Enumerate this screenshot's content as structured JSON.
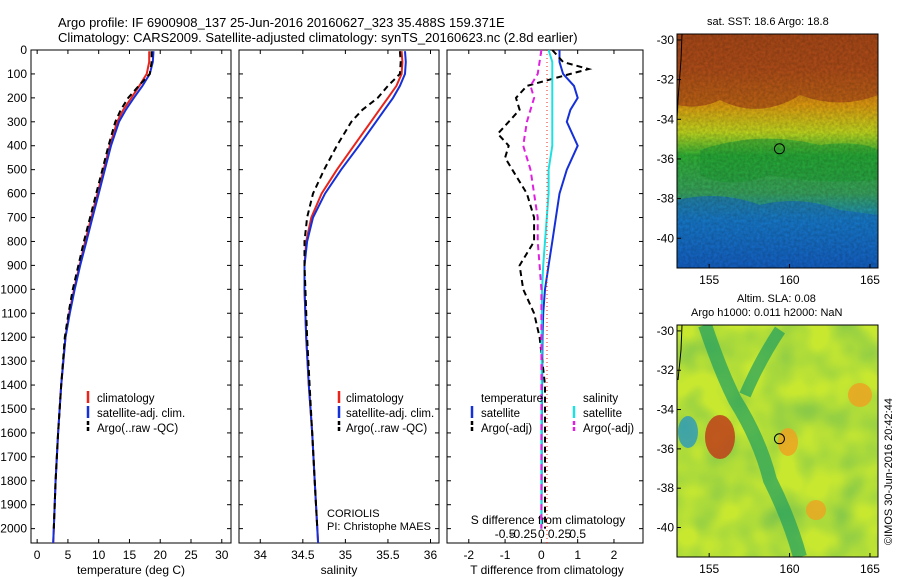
{
  "figure": {
    "title_line1": "Argo profile: IF 6900908_137 25-Jun-2016 20160627_323 35.488S 159.371E",
    "title_line2": "Climatology: CARS2009. Satellite-adjusted climatology: synTS_20160623.nc (2.8d earlier)",
    "credit": "©IMOS 30-Jun-2016 20:42:44",
    "institution": "CORIOLIS",
    "pi": "PI: Christophe MAES"
  },
  "colors": {
    "climatology": "#e8241c",
    "satellite": "#1530d8",
    "argo": "#000000",
    "salinity_satellite": "#1ee0e0",
    "salinity_argo": "#e020e0"
  },
  "chart_data": [
    {
      "type": "line",
      "id": "temperature",
      "xlabel": "temperature (deg C)",
      "ylabel": "",
      "xlim": [
        -1,
        31.5
      ],
      "ylim": [
        2060,
        0
      ],
      "xticks": [
        0,
        5,
        10,
        15,
        20,
        25,
        30
      ],
      "yticks": [
        0,
        100,
        200,
        300,
        400,
        500,
        600,
        700,
        800,
        900,
        1000,
        1100,
        1200,
        1300,
        1400,
        1500,
        1600,
        1700,
        1800,
        1900,
        2000
      ],
      "legend": [
        "climatology",
        "satellite-adj. clim.",
        "Argo(..raw -QC)"
      ],
      "legend_placement": "lower-right",
      "series": [
        {
          "name": "climatology",
          "depth": [
            5,
            50,
            100,
            150,
            200,
            250,
            300,
            400,
            500,
            600,
            700,
            800,
            900,
            1000,
            1100,
            1200,
            1400,
            1600,
            1800,
            2000,
            2060
          ],
          "values": [
            18.2,
            18.2,
            17.8,
            16.6,
            15.3,
            14.0,
            13.0,
            11.8,
            10.8,
            9.8,
            8.8,
            7.8,
            6.9,
            6.0,
            5.2,
            4.6,
            3.9,
            3.4,
            3.0,
            2.7,
            2.6
          ]
        },
        {
          "name": "satellite-adj. clim.",
          "depth": [
            5,
            50,
            100,
            150,
            200,
            250,
            300,
            400,
            500,
            600,
            700,
            800,
            900,
            1000,
            1100,
            1200,
            1400,
            1600,
            1800,
            2000,
            2060
          ],
          "values": [
            18.9,
            18.8,
            18.3,
            17.1,
            15.7,
            14.4,
            13.3,
            12.0,
            11.0,
            10.0,
            9.0,
            8.0,
            7.0,
            6.1,
            5.3,
            4.6,
            3.9,
            3.4,
            3.0,
            2.7,
            2.6
          ]
        },
        {
          "name": "Argo(..raw -QC)",
          "depth": [
            5,
            50,
            100,
            150,
            200,
            250,
            300,
            400,
            500,
            600,
            700,
            800,
            900,
            1000,
            1100,
            1200,
            1400,
            1600,
            1800,
            2000
          ],
          "values": [
            18.6,
            18.6,
            18.3,
            16.5,
            14.8,
            13.6,
            12.7,
            11.6,
            10.6,
            9.6,
            8.6,
            7.6,
            6.7,
            5.8,
            5.1,
            4.5,
            3.9,
            3.4,
            3.0,
            2.7
          ]
        }
      ]
    },
    {
      "type": "line",
      "id": "salinity",
      "xlabel": "salinity",
      "ylabel": "",
      "xlim": [
        33.75,
        36.1
      ],
      "ylim": [
        2060,
        0
      ],
      "xticks": [
        34,
        34.5,
        35,
        35.5,
        36
      ],
      "legend": [
        "climatology",
        "satellite-adj. clim.",
        "Argo(..raw -QC)"
      ],
      "legend_placement": "lower-right",
      "series": [
        {
          "name": "climatology",
          "depth": [
            5,
            50,
            100,
            150,
            200,
            250,
            300,
            400,
            500,
            600,
            700,
            800,
            900,
            1000,
            1200,
            1400,
            1600,
            1800,
            2000,
            2060
          ],
          "values": [
            35.66,
            35.67,
            35.66,
            35.6,
            35.5,
            35.4,
            35.3,
            35.1,
            34.9,
            34.72,
            34.6,
            34.54,
            34.52,
            34.52,
            34.54,
            34.57,
            34.61,
            34.64,
            34.67,
            34.68
          ]
        },
        {
          "name": "satellite-adj. clim.",
          "depth": [
            5,
            50,
            100,
            150,
            200,
            250,
            300,
            400,
            500,
            600,
            700,
            800,
            900,
            1000,
            1200,
            1400,
            1600,
            1800,
            2000,
            2060
          ],
          "values": [
            35.7,
            35.71,
            35.7,
            35.64,
            35.56,
            35.46,
            35.36,
            35.16,
            34.95,
            34.76,
            34.62,
            34.55,
            34.52,
            34.52,
            34.54,
            34.57,
            34.61,
            34.64,
            34.67,
            34.68
          ]
        },
        {
          "name": "Argo(..raw -QC)",
          "depth": [
            5,
            50,
            100,
            150,
            200,
            250,
            300,
            400,
            500,
            600,
            700,
            800,
            900,
            1000,
            1200,
            1400,
            1600,
            1800,
            2000
          ],
          "values": [
            35.64,
            35.65,
            35.64,
            35.5,
            35.38,
            35.2,
            35.07,
            34.9,
            34.75,
            34.62,
            34.55,
            34.52,
            34.52,
            34.53,
            34.55,
            34.58,
            34.61,
            34.64,
            34.67
          ]
        }
      ]
    },
    {
      "type": "line",
      "id": "difference",
      "xlabel": "T difference from climatology",
      "xlabel_top": "S difference from climatology",
      "ylabel": "",
      "xlim": [
        -2.6,
        2.8
      ],
      "ylim": [
        2060,
        0
      ],
      "xticks": [
        -2,
        -1,
        0,
        1,
        2
      ],
      "xticks_s": [
        "-0.5",
        "-0.25",
        "0",
        "0.25",
        "0.5"
      ],
      "legend_header_t": "temperature",
      "legend_header_s": "salinity",
      "legend": [
        "satellite",
        "Argo(-adj)",
        "satellite",
        "Argo(-adj)"
      ],
      "legend_placement": "lower-center",
      "series": [
        {
          "name": "satellite",
          "depth": [
            0,
            50,
            100,
            150,
            200,
            250,
            300,
            400,
            500,
            600,
            700,
            800,
            900,
            1000,
            1100,
            1200,
            1400,
            1600,
            1800,
            2000
          ],
          "values": [
            0.5,
            0.5,
            0.6,
            0.9,
            1.0,
            0.8,
            0.7,
            1.0,
            0.7,
            0.5,
            0.4,
            0.3,
            0.2,
            0.1,
            0.05,
            0.03,
            0.02,
            0.01,
            0.01,
            0.0
          ]
        },
        {
          "name": "Argo(-adj)",
          "depth": [
            0,
            50,
            80,
            100,
            150,
            200,
            250,
            300,
            350,
            400,
            450,
            500,
            600,
            700,
            800,
            900,
            1000,
            1100,
            1200,
            1400,
            1600,
            1800,
            2000
          ],
          "values": [
            0.3,
            0.6,
            1.3,
            0.8,
            -0.4,
            -0.7,
            -0.6,
            -0.9,
            -1.2,
            -0.9,
            -1.0,
            -0.8,
            -0.4,
            -0.2,
            -0.2,
            -0.6,
            -0.5,
            -0.2,
            -0.05,
            0.1,
            0.1,
            0.1,
            0.1
          ]
        },
        {
          "name": "satellite",
          "depth": [
            0,
            50,
            100,
            200,
            300,
            400,
            500,
            600,
            700,
            800,
            900,
            1000,
            1200,
            1400,
            1600,
            1800,
            2000
          ],
          "values": [
            0.2,
            0.3,
            0.3,
            0.3,
            0.3,
            0.3,
            0.2,
            0.2,
            0.15,
            0.1,
            0.05,
            0.02,
            0.01,
            0.01,
            0.0,
            0.0,
            0.0
          ]
        },
        {
          "name": "Argo(-adj)",
          "depth": [
            0,
            100,
            150,
            200,
            300,
            400,
            500,
            600,
            700,
            800,
            900,
            1000,
            1100,
            1200,
            1400,
            1600,
            1800,
            2000
          ],
          "values": [
            0.0,
            -0.1,
            -0.3,
            -0.2,
            -0.4,
            -0.5,
            -0.3,
            -0.2,
            -0.1,
            -0.1,
            -0.05,
            0.0,
            0.0,
            0.0,
            0.0,
            0.0,
            0.0,
            0.0
          ]
        }
      ]
    },
    {
      "type": "heatmap",
      "id": "sst-map",
      "title": "sat. SST: 18.6 Argo: 18.8",
      "xlim": [
        153,
        165.5
      ],
      "ylim": [
        -41.5,
        -29.7
      ],
      "xticks": [
        155,
        160,
        165
      ],
      "yticks": [
        -30,
        -32,
        -34,
        -36,
        -38,
        -40
      ],
      "marker": {
        "lon": 159.371,
        "lat": -35.488
      }
    },
    {
      "type": "heatmap",
      "id": "sla-map",
      "title": "Altim. SLA: 0.08",
      "subtitle": "Argo h1000: 0.011 h2000: NaN",
      "xlim": [
        153,
        165.5
      ],
      "ylim": [
        -41.5,
        -29.7
      ],
      "xticks": [
        155,
        160,
        165
      ],
      "yticks": [
        -30,
        -32,
        -34,
        -36,
        -38,
        -40
      ],
      "marker": {
        "lon": 159.371,
        "lat": -35.488
      }
    }
  ]
}
